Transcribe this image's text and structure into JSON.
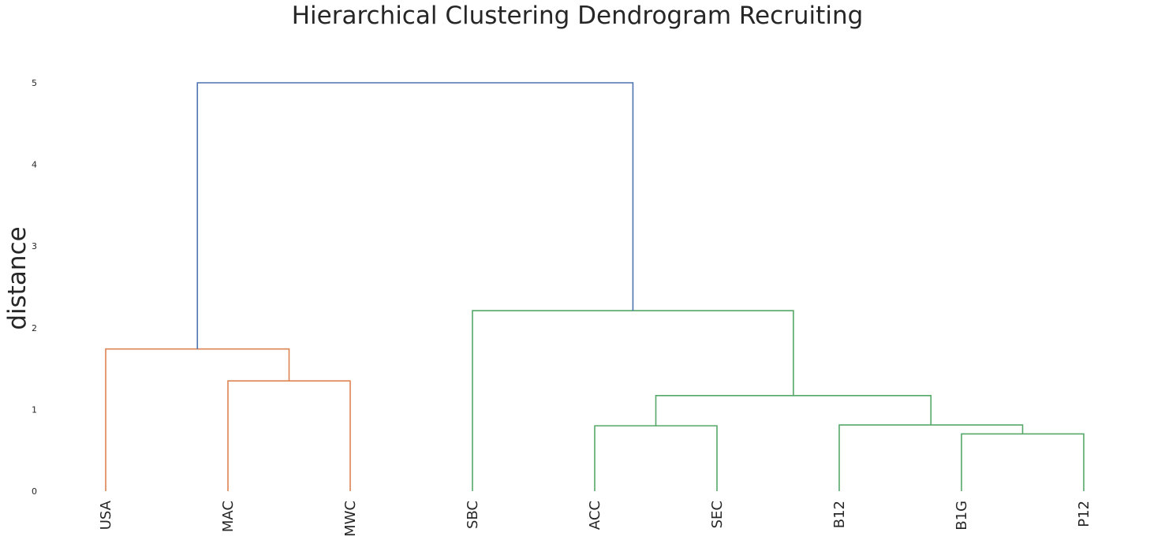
{
  "chart_data": {
    "type": "dendrogram",
    "title": "Hierarchical Clustering Dendrogram Recruiting",
    "xlabel": "",
    "ylabel": "distance",
    "ylim": [
      0,
      5.5
    ],
    "yticks": [
      "0",
      "1",
      "2",
      "3",
      "4",
      "5"
    ],
    "grid": false,
    "leaves": [
      "USA",
      "MAC",
      "MWC",
      "SBC",
      "ACC",
      "SEC",
      "B12",
      "B1G",
      "P12"
    ],
    "colors": {
      "cluster_1": "#dd8452",
      "cluster_2": "#55a868",
      "above_threshold": "#4c72b0"
    },
    "merges": [
      {
        "left": "B1G",
        "right": "P12",
        "distance": 0.7,
        "color": "cluster_2"
      },
      {
        "left": "ACC",
        "right": "SEC",
        "distance": 0.8,
        "color": "cluster_2"
      },
      {
        "left": "B12",
        "right": "B1G+P12",
        "distance": 0.81,
        "color": "cluster_2"
      },
      {
        "left": "ACC+SEC",
        "right": "B12+B1G+P12",
        "distance": 1.17,
        "color": "cluster_2"
      },
      {
        "left": "MAC",
        "right": "MWC",
        "distance": 1.35,
        "color": "cluster_1"
      },
      {
        "left": "USA",
        "right": "MAC+MWC",
        "distance": 1.74,
        "color": "cluster_1"
      },
      {
        "left": "SBC",
        "right": "ACC+SEC+B12+B1G+P12",
        "distance": 2.21,
        "color": "cluster_2"
      },
      {
        "left": "USA+MAC+MWC",
        "right": "SBC+ACC+SEC+B12+B1G+P12",
        "distance": 5.0,
        "color": "above_threshold"
      }
    ]
  }
}
